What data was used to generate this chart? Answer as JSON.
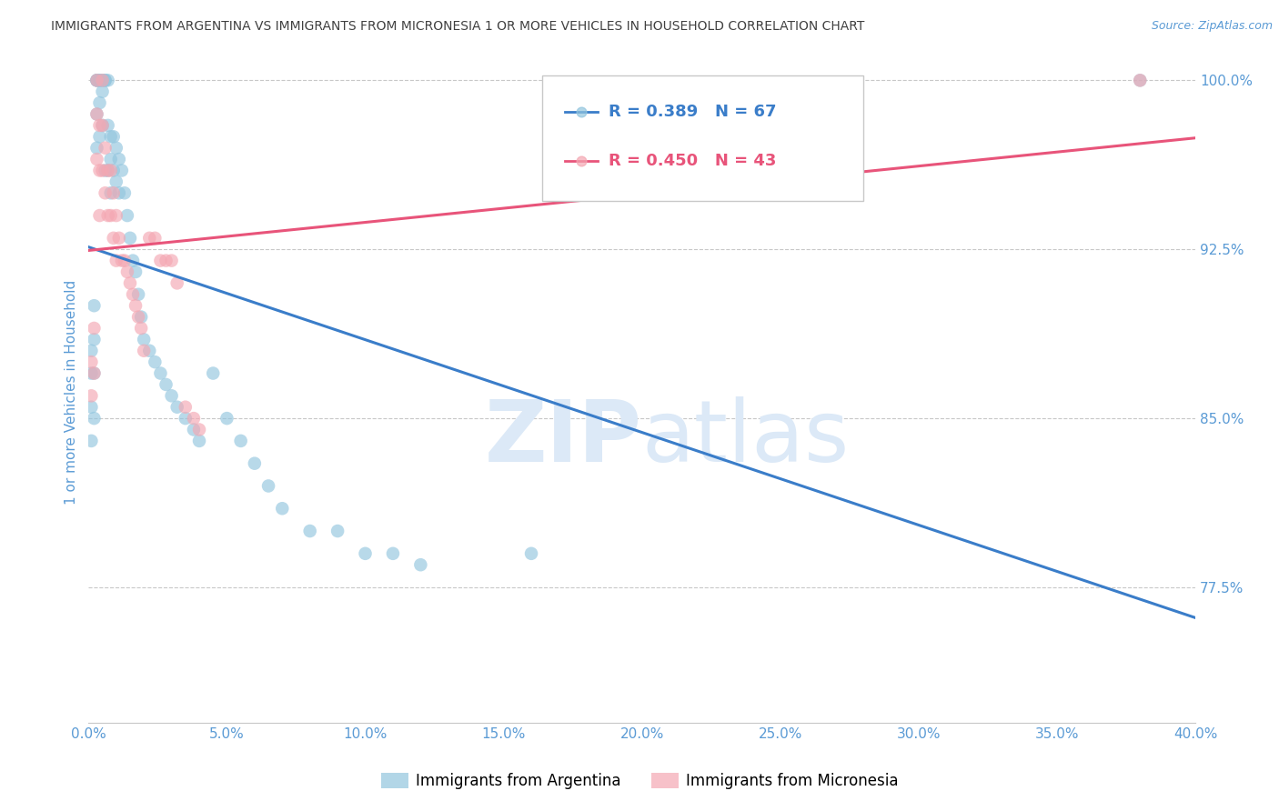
{
  "title": "IMMIGRANTS FROM ARGENTINA VS IMMIGRANTS FROM MICRONESIA 1 OR MORE VEHICLES IN HOUSEHOLD CORRELATION CHART",
  "source": "Source: ZipAtlas.com",
  "ylabel": "1 or more Vehicles in Household",
  "legend_blue": "R = 0.389   N = 67",
  "legend_pink": "R = 0.450   N = 43",
  "legend_label_blue": "Immigrants from Argentina",
  "legend_label_pink": "Immigrants from Micronesia",
  "blue_color": "#92c5de",
  "pink_color": "#f4a7b2",
  "blue_line_color": "#3a7dc9",
  "pink_line_color": "#e8547a",
  "background_color": "#ffffff",
  "grid_color": "#c8c8c8",
  "title_color": "#404040",
  "axis_label_color": "#5b9bd5",
  "watermark_color": "#dce9f7",
  "xlim": [
    0.0,
    0.4
  ],
  "ylim": [
    0.715,
    1.008
  ],
  "yticks": [
    0.775,
    0.85,
    0.925,
    1.0
  ],
  "ytick_labels": [
    "77.5%",
    "85.0%",
    "92.5%",
    "100.0%"
  ],
  "xticks": [
    0.0,
    0.05,
    0.1,
    0.15,
    0.2,
    0.25,
    0.3,
    0.35,
    0.4
  ],
  "xtick_labels": [
    "0.0%",
    "5.0%",
    "10.0%",
    "15.0%",
    "20.0%",
    "25.0%",
    "30.0%",
    "35.0%",
    "40.0%"
  ],
  "blue_x": [
    0.001,
    0.001,
    0.001,
    0.001,
    0.002,
    0.002,
    0.002,
    0.002,
    0.003,
    0.003,
    0.003,
    0.003,
    0.003,
    0.004,
    0.004,
    0.004,
    0.004,
    0.005,
    0.005,
    0.005,
    0.005,
    0.006,
    0.006,
    0.006,
    0.007,
    0.007,
    0.007,
    0.008,
    0.008,
    0.008,
    0.009,
    0.009,
    0.01,
    0.01,
    0.011,
    0.011,
    0.012,
    0.013,
    0.014,
    0.015,
    0.016,
    0.017,
    0.018,
    0.019,
    0.02,
    0.022,
    0.024,
    0.026,
    0.028,
    0.03,
    0.032,
    0.035,
    0.038,
    0.04,
    0.045,
    0.05,
    0.055,
    0.06,
    0.065,
    0.07,
    0.08,
    0.09,
    0.1,
    0.11,
    0.12,
    0.16,
    0.38
  ],
  "blue_y": [
    0.88,
    0.87,
    0.855,
    0.84,
    0.9,
    0.885,
    0.87,
    0.85,
    1.0,
    1.0,
    1.0,
    0.985,
    0.97,
    1.0,
    1.0,
    0.99,
    0.975,
    1.0,
    1.0,
    0.995,
    0.98,
    1.0,
    1.0,
    0.96,
    1.0,
    0.98,
    0.96,
    0.975,
    0.965,
    0.95,
    0.975,
    0.96,
    0.97,
    0.955,
    0.965,
    0.95,
    0.96,
    0.95,
    0.94,
    0.93,
    0.92,
    0.915,
    0.905,
    0.895,
    0.885,
    0.88,
    0.875,
    0.87,
    0.865,
    0.86,
    0.855,
    0.85,
    0.845,
    0.84,
    0.87,
    0.85,
    0.84,
    0.83,
    0.82,
    0.81,
    0.8,
    0.8,
    0.79,
    0.79,
    0.785,
    0.79,
    1.0
  ],
  "pink_x": [
    0.001,
    0.001,
    0.002,
    0.002,
    0.003,
    0.003,
    0.003,
    0.004,
    0.004,
    0.004,
    0.005,
    0.005,
    0.005,
    0.006,
    0.006,
    0.007,
    0.007,
    0.008,
    0.008,
    0.009,
    0.009,
    0.01,
    0.01,
    0.011,
    0.012,
    0.013,
    0.014,
    0.015,
    0.016,
    0.017,
    0.018,
    0.019,
    0.02,
    0.022,
    0.024,
    0.026,
    0.028,
    0.03,
    0.032,
    0.035,
    0.038,
    0.04,
    0.38
  ],
  "pink_y": [
    0.875,
    0.86,
    0.89,
    0.87,
    1.0,
    0.985,
    0.965,
    0.98,
    0.96,
    0.94,
    1.0,
    0.98,
    0.96,
    0.97,
    0.95,
    0.96,
    0.94,
    0.96,
    0.94,
    0.95,
    0.93,
    0.94,
    0.92,
    0.93,
    0.92,
    0.92,
    0.915,
    0.91,
    0.905,
    0.9,
    0.895,
    0.89,
    0.88,
    0.93,
    0.93,
    0.92,
    0.92,
    0.92,
    0.91,
    0.855,
    0.85,
    0.845,
    1.0
  ],
  "blue_R": 0.389,
  "blue_N": 67,
  "pink_R": 0.45,
  "pink_N": 43
}
